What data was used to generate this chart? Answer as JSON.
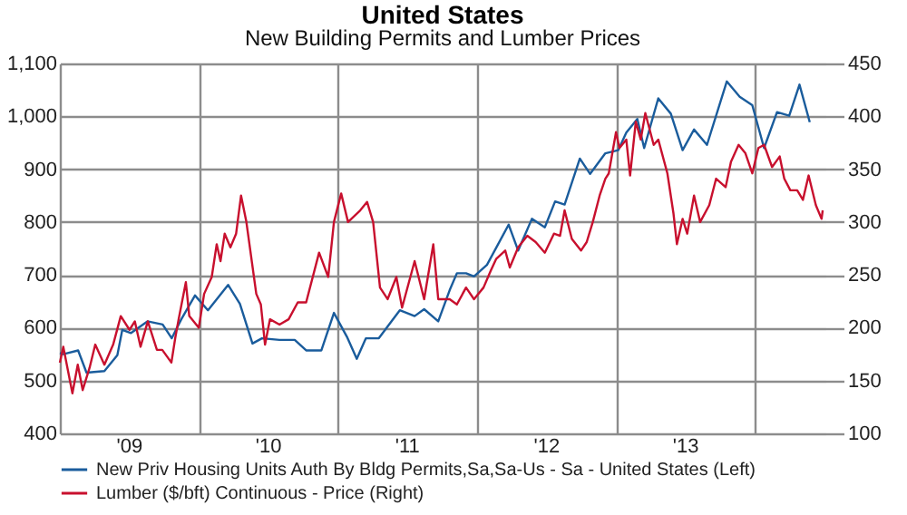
{
  "chart_data": {
    "type": "line",
    "title": "United States",
    "subtitle": "New Building Permits and Lumber Prices",
    "xlim": [
      "2009-01-01",
      "2014-07-05"
    ],
    "xticks": [
      {
        "value": "2009-01-01",
        "label": null
      },
      {
        "value": "2009-07-01",
        "label": "'09"
      },
      {
        "value": "2010-01-01",
        "label": null
      },
      {
        "value": "2010-07-01",
        "label": "'10"
      },
      {
        "value": "2011-01-01",
        "label": null
      },
      {
        "value": "2011-07-01",
        "label": "'11"
      },
      {
        "value": "2012-01-01",
        "label": null
      },
      {
        "value": "2012-07-01",
        "label": "'12"
      },
      {
        "value": "2013-01-01",
        "label": null
      },
      {
        "value": "2013-07-01",
        "label": "'13"
      },
      {
        "value": "2014-01-01",
        "label": null
      }
    ],
    "ylim": [
      400,
      1100
    ],
    "yticks": [
      400,
      500,
      600,
      700,
      800,
      900,
      {
        "value": 1000,
        "label": "1,000"
      },
      {
        "value": 1100,
        "label": "1,100"
      }
    ],
    "y2lim": [
      100,
      450
    ],
    "y2ticks": [
      100,
      150,
      200,
      250,
      300,
      350,
      400,
      450
    ],
    "grid": true,
    "legend": "bottom",
    "series": [
      {
        "name": "New Priv Housing Units Auth By Bldg Permits,Sa,Sa-Us - Sa - United States (Left)",
        "color": "#1a5c9c",
        "axis": "y",
        "x": [
          "2009-01-01",
          "2009-01-10",
          "2009-02-18",
          "2009-03-12",
          "2009-04-28",
          "2009-06-01",
          "2009-06-14",
          "2009-07-07",
          "2009-08-19",
          "2009-09-28",
          "2009-10-22",
          "2009-11-16",
          "2009-12-22",
          "2010-01-25",
          "2010-03-19",
          "2010-04-19",
          "2010-05-22",
          "2010-06-16",
          "2010-08-01",
          "2010-09-10",
          "2010-10-10",
          "2010-11-19",
          "2010-12-22",
          "2011-01-25",
          "2011-02-20",
          "2011-03-16",
          "2011-04-19",
          "2011-05-22",
          "2011-06-13",
          "2011-07-22",
          "2011-08-16",
          "2011-09-22",
          "2011-10-22",
          "2011-11-10",
          "2011-12-04",
          "2011-12-25",
          "2012-01-28",
          "2012-03-25",
          "2012-04-19",
          "2012-05-25",
          "2012-06-28",
          "2012-07-25",
          "2012-08-19",
          "2012-09-28",
          "2012-10-25",
          "2012-12-04",
          "2013-01-07",
          "2013-01-28",
          "2013-02-26",
          "2013-03-16",
          "2013-04-22",
          "2013-05-25",
          "2013-06-25",
          "2013-07-25",
          "2013-08-28",
          "2013-10-19",
          "2013-11-22",
          "2013-12-25",
          "2014-01-25",
          "2014-02-28",
          "2014-04-01",
          "2014-04-28",
          "2014-05-25"
        ],
        "values": [
          552,
          550,
          557,
          515,
          518,
          548,
          596,
          590,
          612,
          606,
          580,
          616,
          661,
          633,
          681,
          645,
          570,
          580,
          577,
          577,
          557,
          557,
          628,
          583,
          541,
          580,
          580,
          612,
          633,
          622,
          635,
          612,
          671,
          703,
          703,
          697,
          719,
          795,
          746,
          806,
          790,
          839,
          833,
          920,
          891,
          930,
          936,
          969,
          995,
          940,
          1034,
          1005,
          936,
          975,
          946,
          1066,
          1037,
          1021,
          940,
          1008,
          1001,
          1060,
          989
        ]
      },
      {
        "name": "Lumber ($/bft) Continuous - Price (Right)",
        "color": "#c8102e",
        "axis": "y2",
        "x": [
          "2009-01-01",
          "2009-01-10",
          "2009-02-03",
          "2009-02-17",
          "2009-03-02",
          "2009-03-20",
          "2009-04-04",
          "2009-04-28",
          "2009-05-21",
          "2009-06-10",
          "2009-07-03",
          "2009-07-17",
          "2009-08-01",
          "2009-08-20",
          "2009-09-13",
          "2009-09-27",
          "2009-10-21",
          "2009-10-31",
          "2009-11-09",
          "2009-11-28",
          "2009-12-07",
          "2010-01-01",
          "2010-01-15",
          "2010-02-04",
          "2010-02-17",
          "2010-02-27",
          "2010-03-10",
          "2010-03-25",
          "2010-04-09",
          "2010-04-22",
          "2010-05-06",
          "2010-06-01",
          "2010-06-13",
          "2010-06-24",
          "2010-07-07",
          "2010-08-01",
          "2010-08-25",
          "2010-09-18",
          "2010-10-10",
          "2010-11-13",
          "2010-12-07",
          "2010-12-22",
          "2011-01-10",
          "2011-01-28",
          "2011-03-01",
          "2011-03-19",
          "2011-04-04",
          "2011-04-22",
          "2011-05-12",
          "2011-06-04",
          "2011-06-19",
          "2011-07-22",
          "2011-08-16",
          "2011-09-09",
          "2011-09-22",
          "2011-10-22",
          "2011-11-10",
          "2011-12-04",
          "2011-12-25",
          "2012-01-19",
          "2012-02-07",
          "2012-02-21",
          "2012-03-16",
          "2012-03-28",
          "2012-04-19",
          "2012-05-13",
          "2012-06-04",
          "2012-06-28",
          "2012-07-22",
          "2012-08-07",
          "2012-08-19",
          "2012-09-07",
          "2012-10-01",
          "2012-10-16",
          "2012-11-01",
          "2012-11-19",
          "2012-12-04",
          "2012-12-13",
          "2013-01-01",
          "2013-01-10",
          "2013-01-28",
          "2013-02-07",
          "2013-02-22",
          "2013-03-07",
          "2013-03-19",
          "2013-04-10",
          "2013-04-22",
          "2013-05-16",
          "2013-06-01",
          "2013-06-10",
          "2013-06-25",
          "2013-07-07",
          "2013-07-25",
          "2013-08-10",
          "2013-09-03",
          "2013-09-21",
          "2013-10-16",
          "2013-10-30",
          "2013-11-19",
          "2013-12-07",
          "2013-12-25",
          "2014-01-10",
          "2014-01-25",
          "2014-02-15",
          "2014-03-07",
          "2014-03-19",
          "2014-04-04",
          "2014-04-22",
          "2014-05-07",
          "2014-05-22",
          "2014-06-10",
          "2014-06-25",
          "2014-06-28"
        ],
        "values": [
          167,
          182,
          138,
          165,
          141,
          162,
          184,
          165,
          184,
          211,
          198,
          206,
          182,
          206,
          179,
          179,
          167,
          190,
          208,
          243,
          211,
          200,
          232,
          248,
          279,
          263,
          289,
          276,
          289,
          325,
          300,
          232,
          222,
          184,
          208,
          203,
          208,
          224,
          224,
          271,
          248,
          300,
          327,
          300,
          311,
          319,
          300,
          238,
          227,
          248,
          219,
          263,
          227,
          279,
          227,
          227,
          222,
          238,
          227,
          238,
          254,
          265,
          273,
          257,
          276,
          287,
          281,
          271,
          289,
          287,
          311,
          284,
          273,
          281,
          300,
          325,
          341,
          346,
          385,
          370,
          378,
          344,
          395,
          378,
          403,
          373,
          378,
          346,
          308,
          279,
          303,
          289,
          325,
          300,
          316,
          341,
          333,
          357,
          373,
          365,
          346,
          370,
          373,
          352,
          362,
          341,
          330,
          330,
          321,
          344,
          316,
          303,
          311
        ]
      }
    ]
  }
}
